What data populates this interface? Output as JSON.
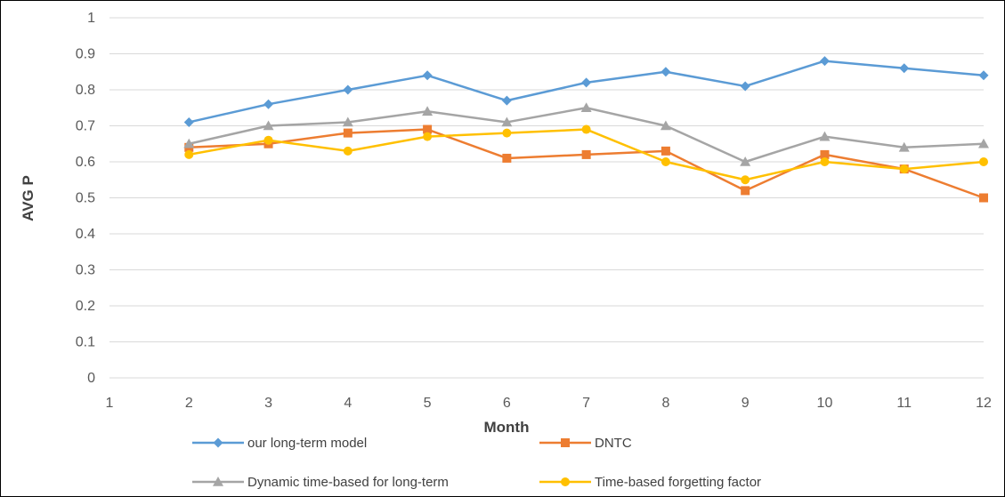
{
  "chart_data": {
    "type": "line",
    "title": "",
    "xlabel": "Month",
    "ylabel": "AVG P",
    "xlim": [
      1,
      12
    ],
    "ylim": [
      0,
      1
    ],
    "x_ticks": [
      1,
      2,
      3,
      4,
      5,
      6,
      7,
      8,
      9,
      10,
      11,
      12
    ],
    "y_ticks": [
      0,
      0.1,
      0.2,
      0.3,
      0.4,
      0.5,
      0.6,
      0.7,
      0.8,
      0.9,
      1
    ],
    "grid": "horizontal",
    "legend_position": "bottom",
    "x": [
      2,
      3,
      4,
      5,
      6,
      7,
      8,
      9,
      10,
      11,
      12
    ],
    "series": [
      {
        "name": "our long-term model",
        "color": "#5B9BD5",
        "marker": "diamond",
        "values": [
          0.71,
          0.76,
          0.8,
          0.84,
          0.77,
          0.82,
          0.85,
          0.81,
          0.88,
          0.86,
          0.84
        ]
      },
      {
        "name": "DNTC",
        "color": "#ED7D31",
        "marker": "square",
        "values": [
          0.64,
          0.65,
          0.68,
          0.69,
          0.61,
          0.62,
          0.63,
          0.52,
          0.62,
          0.58,
          0.5
        ]
      },
      {
        "name": "Dynamic time-based for long-term",
        "color": "#A5A5A5",
        "marker": "triangle",
        "values": [
          0.65,
          0.7,
          0.71,
          0.74,
          0.71,
          0.75,
          0.7,
          0.6,
          0.67,
          0.64,
          0.65
        ]
      },
      {
        "name": "Time-based forgetting factor",
        "color": "#FFC000",
        "marker": "circle",
        "values": [
          0.62,
          0.66,
          0.63,
          0.67,
          0.68,
          0.69,
          0.6,
          0.55,
          0.6,
          0.58,
          0.6
        ]
      }
    ]
  }
}
